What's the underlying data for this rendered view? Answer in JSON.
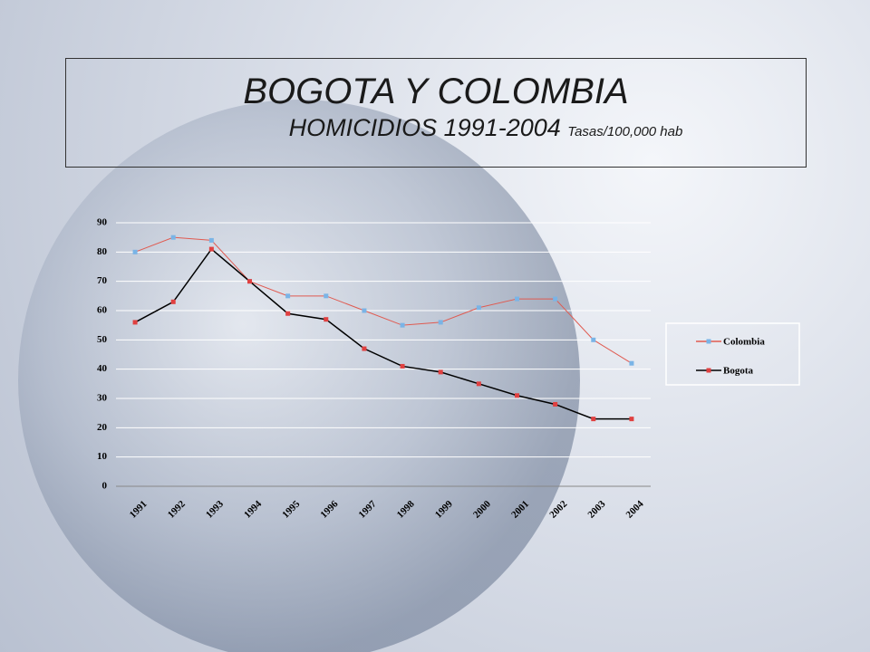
{
  "chart_data": {
    "type": "line",
    "title": "BOGOTA Y COLOMBIA",
    "subtitle": "HOMICIDIOS 1991-2004",
    "units": "Tasas/100,000 hab",
    "categories": [
      "1991",
      "1992",
      "1993",
      "1994",
      "1995",
      "1996",
      "1997",
      "1998",
      "1999",
      "2000",
      "2001",
      "2002",
      "2003",
      "2004"
    ],
    "series": [
      {
        "name": "Colombia",
        "color": "#e05a50",
        "marker_color": "#7ab4e6",
        "values": [
          80,
          85,
          84,
          70,
          65,
          65,
          60,
          55,
          56,
          61,
          64,
          64,
          50,
          42
        ]
      },
      {
        "name": "Bogota",
        "color": "#000000",
        "marker_color": "#e04040",
        "values": [
          56,
          63,
          81,
          70,
          59,
          57,
          47,
          41,
          39,
          35,
          31,
          28,
          23,
          23
        ]
      }
    ],
    "ylim": [
      0,
      90
    ],
    "yticks": [
      0,
      10,
      20,
      30,
      40,
      50,
      60,
      70,
      80,
      90
    ],
    "grid": true,
    "legend": "right"
  }
}
